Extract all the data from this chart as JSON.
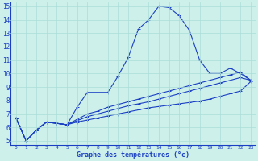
{
  "xlabel": "Graphe des températures (°c)",
  "xlim": [
    -0.5,
    23.5
  ],
  "ylim": [
    4.7,
    15.3
  ],
  "yticks": [
    5,
    6,
    7,
    8,
    9,
    10,
    11,
    12,
    13,
    14,
    15
  ],
  "xticks": [
    0,
    1,
    2,
    3,
    4,
    5,
    6,
    7,
    8,
    9,
    10,
    11,
    12,
    13,
    14,
    15,
    16,
    17,
    18,
    19,
    20,
    21,
    22,
    23
  ],
  "bg_color": "#cef0ea",
  "grid_color": "#aaddd6",
  "line_color": "#1a3fc4",
  "curves": [
    [
      6.7,
      5.0,
      5.8,
      6.4,
      6.3,
      6.2,
      7.5,
      8.6,
      8.6,
      8.6,
      9.8,
      11.2,
      13.3,
      14.0,
      15.0,
      14.9,
      14.3,
      13.2,
      11.0,
      10.0,
      10.0,
      10.4,
      10.0,
      9.5
    ],
    [
      6.7,
      5.0,
      5.8,
      6.4,
      6.3,
      6.2,
      6.4,
      6.55,
      6.7,
      6.85,
      7.0,
      7.15,
      7.3,
      7.45,
      7.55,
      7.65,
      7.75,
      7.85,
      7.95,
      8.1,
      8.3,
      8.5,
      8.7,
      9.4
    ],
    [
      6.7,
      5.0,
      5.8,
      6.4,
      6.3,
      6.2,
      6.5,
      6.8,
      7.0,
      7.2,
      7.4,
      7.6,
      7.75,
      7.9,
      8.1,
      8.3,
      8.5,
      8.7,
      8.9,
      9.1,
      9.3,
      9.5,
      9.7,
      9.5
    ],
    [
      6.7,
      5.0,
      5.8,
      6.4,
      6.3,
      6.2,
      6.6,
      7.0,
      7.2,
      7.5,
      7.7,
      7.9,
      8.1,
      8.3,
      8.5,
      8.7,
      8.9,
      9.1,
      9.3,
      9.5,
      9.7,
      9.9,
      10.1,
      9.5
    ]
  ]
}
